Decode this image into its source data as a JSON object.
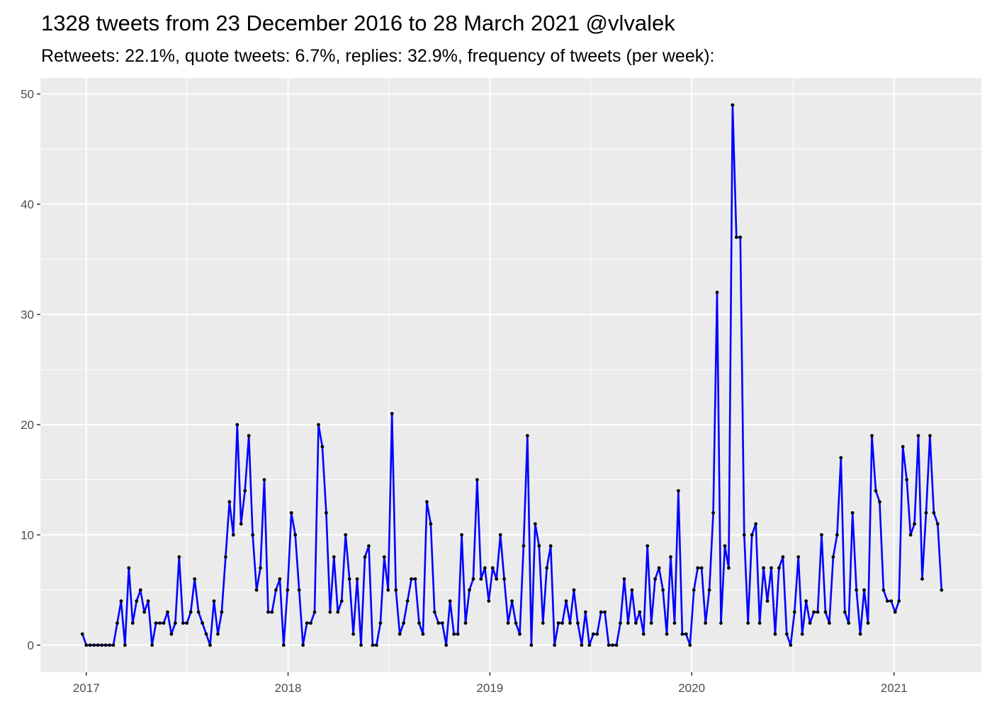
{
  "chart_data": {
    "type": "line",
    "title": "1328 tweets from 23 December 2016 to 28 March 2021 @vlvalek",
    "subtitle": "Retweets: 22.1%, quote tweets: 6.7%, replies: 32.9%, frequency of tweets (per week):",
    "xlabel": "",
    "ylabel": "",
    "x_start_date": "2016-12-25",
    "x_interval_days": 7,
    "xlim": [
      "2016-10-10",
      "2021-06-08"
    ],
    "ylim": [
      -2.45,
      51.45
    ],
    "x_ticks": [
      {
        "date": "2017-01-01",
        "label": "2017"
      },
      {
        "date": "2018-01-01",
        "label": "2018"
      },
      {
        "date": "2019-01-01",
        "label": "2019"
      },
      {
        "date": "2020-01-01",
        "label": "2020"
      },
      {
        "date": "2021-01-01",
        "label": "2021"
      }
    ],
    "y_ticks": [
      {
        "value": 0,
        "label": "0"
      },
      {
        "value": 10,
        "label": "10"
      },
      {
        "value": 20,
        "label": "20"
      },
      {
        "value": 30,
        "label": "30"
      },
      {
        "value": 40,
        "label": "40"
      },
      {
        "value": 50,
        "label": "50"
      }
    ],
    "grid": true,
    "legend": "none",
    "colors": {
      "line": "#0000ff",
      "points": "#000000",
      "panel": "#ebebeb",
      "grid": "#ffffff"
    },
    "values": [
      1,
      0,
      0,
      0,
      0,
      0,
      0,
      0,
      0,
      2,
      4,
      0,
      7,
      2,
      4,
      5,
      3,
      4,
      0,
      2,
      2,
      2,
      3,
      1,
      2,
      8,
      2,
      2,
      3,
      6,
      3,
      2,
      1,
      0,
      4,
      1,
      3,
      8,
      13,
      10,
      20,
      11,
      14,
      19,
      10,
      5,
      7,
      15,
      3,
      3,
      5,
      6,
      0,
      5,
      12,
      10,
      5,
      0,
      2,
      2,
      3,
      20,
      18,
      12,
      3,
      8,
      3,
      4,
      10,
      6,
      1,
      6,
      0,
      8,
      9,
      0,
      0,
      2,
      8,
      5,
      21,
      5,
      1,
      2,
      4,
      6,
      6,
      2,
      1,
      13,
      11,
      3,
      2,
      2,
      0,
      4,
      1,
      1,
      10,
      2,
      5,
      6,
      15,
      6,
      7,
      4,
      7,
      6,
      10,
      6,
      2,
      4,
      2,
      1,
      9,
      19,
      0,
      11,
      9,
      2,
      7,
      9,
      0,
      2,
      2,
      4,
      2,
      5,
      2,
      0,
      3,
      0,
      1,
      1,
      3,
      3,
      0,
      0,
      0,
      2,
      6,
      2,
      5,
      2,
      3,
      1,
      9,
      2,
      6,
      7,
      5,
      1,
      8,
      2,
      14,
      1,
      1,
      0,
      5,
      7,
      7,
      2,
      5,
      12,
      32,
      2,
      9,
      7,
      49,
      37,
      37,
      10,
      2,
      10,
      11,
      2,
      7,
      4,
      7,
      1,
      7,
      8,
      1,
      0,
      3,
      8,
      1,
      4,
      2,
      3,
      3,
      10,
      3,
      2,
      8,
      10,
      17,
      3,
      2,
      12,
      5,
      1,
      5,
      2,
      19,
      14,
      13,
      5,
      4,
      4,
      3,
      4,
      18,
      15,
      10,
      11,
      19,
      6,
      12,
      19,
      12,
      11,
      5
    ]
  }
}
